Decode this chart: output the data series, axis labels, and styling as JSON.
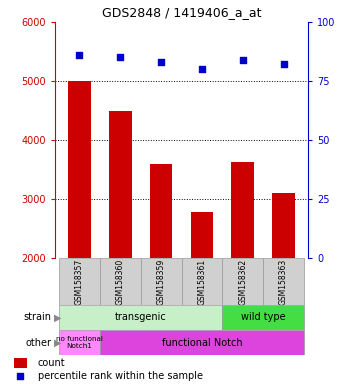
{
  "title": "GDS2848 / 1419406_a_at",
  "samples": [
    "GSM158357",
    "GSM158360",
    "GSM158359",
    "GSM158361",
    "GSM158362",
    "GSM158363"
  ],
  "counts": [
    5000,
    4500,
    3600,
    2780,
    3620,
    3100
  ],
  "percentiles": [
    86,
    85,
    83,
    80,
    84,
    82
  ],
  "ylim_left": [
    2000,
    6000
  ],
  "ylim_right": [
    0,
    100
  ],
  "yticks_left": [
    2000,
    3000,
    4000,
    5000,
    6000
  ],
  "yticks_right": [
    0,
    25,
    50,
    75,
    100
  ],
  "bar_color": "#cc0000",
  "dot_color": "#0000cc",
  "color_transgenic_light": "#c8f0c8",
  "color_wildtype": "#44dd44",
  "color_nofunc": "#ff88ff",
  "color_func": "#dd44dd",
  "left_axis_color": "#cc0000",
  "right_axis_color": "#0000cc",
  "transgenic_count": 4,
  "wildtype_count": 2,
  "nofunc_count": 1,
  "func_count": 5
}
